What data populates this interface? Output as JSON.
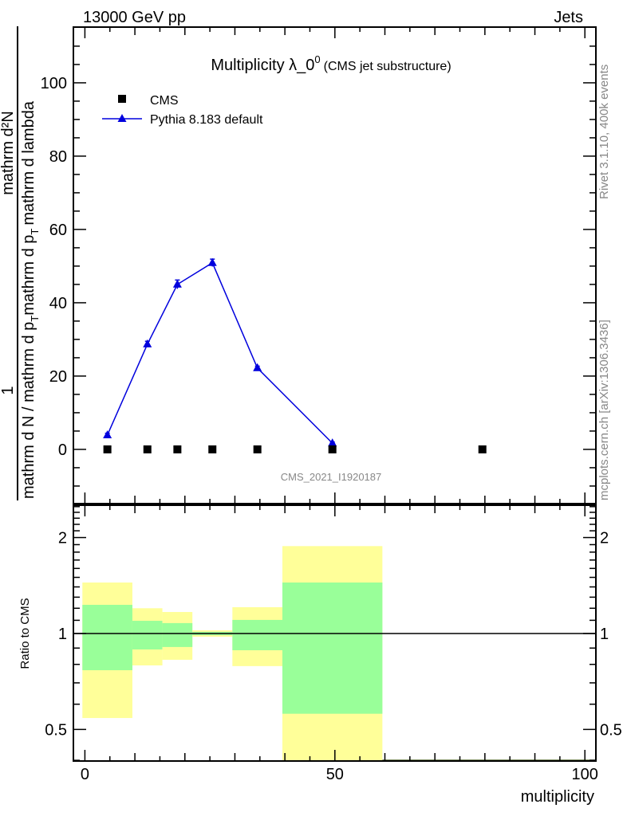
{
  "header": {
    "left": "13000 GeV pp",
    "right": "Jets"
  },
  "side": {
    "rivet": "Rivet 3.1.10,  400k events",
    "mcplots": "mcplots.cern.ch [arXiv:1306.3436]"
  },
  "analysis_id": "CMS_2021_I1920187",
  "ylabel": {
    "num1": "1",
    "num2": "mathrm d²N",
    "den_a": "mathrm d N / mathrm d p",
    "den_b": "mathrm d p",
    "den_c": "mathrm d lambda",
    "sub": "T",
    "den_mid": "mathrm d p"
  },
  "chart_data": [
    {
      "type": "line",
      "title": "Multiplicity λ_0",
      "title_sup": "0",
      "subtitle": "(CMS jet substructure)",
      "xlim": [
        -2.3,
        102.2
      ],
      "ylim": [
        -14.8,
        115.2
      ],
      "yticks": [
        0,
        20,
        40,
        60,
        80,
        100
      ],
      "legend": "top-left",
      "series": [
        {
          "name": "CMS",
          "marker": "square",
          "color": "#000000",
          "x": [
            4.5,
            12.5,
            18.5,
            25.5,
            34.5,
            49.5,
            79.5
          ],
          "y": [
            0,
            0,
            0,
            0,
            0,
            0,
            0
          ]
        },
        {
          "name": "Pythia 8.183 default",
          "marker": "triangle",
          "color": "#0000dd",
          "x": [
            4.5,
            12.5,
            18.5,
            25.5,
            34.5,
            49.5
          ],
          "y": [
            3.9,
            28.7,
            45.0,
            50.9,
            22.2,
            1.7
          ],
          "err": [
            0.5,
            0.8,
            1.2,
            1.0,
            0.5,
            0.3
          ]
        }
      ]
    },
    {
      "type": "area",
      "ylabel": "Ratio to CMS",
      "xlabel": "multiplicity",
      "xticks": [
        0,
        50,
        100
      ],
      "yticks": [
        0.5,
        1,
        2
      ],
      "yscale": "log",
      "ylim": [
        0.398,
        2.526
      ],
      "reference": 1,
      "bins": [
        {
          "lo": -0.5,
          "hi": 9.5,
          "yellow": [
            0.543,
            1.445
          ],
          "green": [
            0.767,
            1.23
          ]
        },
        {
          "lo": 9.5,
          "hi": 15.5,
          "yellow": [
            0.794,
            1.2
          ],
          "green": [
            0.891,
            1.096
          ]
        },
        {
          "lo": 15.5,
          "hi": 21.5,
          "yellow": [
            0.827,
            1.168
          ],
          "green": [
            0.907,
            1.078
          ]
        },
        {
          "lo": 21.5,
          "hi": 29.5,
          "yellow": [
            0.977,
            1.023
          ],
          "green": [
            0.988,
            1.012
          ]
        },
        {
          "lo": 29.5,
          "hi": 39.5,
          "yellow": [
            0.79,
            1.209
          ],
          "green": [
            0.886,
            1.103
          ]
        },
        {
          "lo": 39.5,
          "hi": 59.5,
          "yellow": [
            0.3,
            1.88
          ],
          "green": [
            0.56,
            1.445
          ]
        }
      ],
      "colors": {
        "yellow": "#ffff99",
        "green": "#99ff99"
      }
    }
  ]
}
